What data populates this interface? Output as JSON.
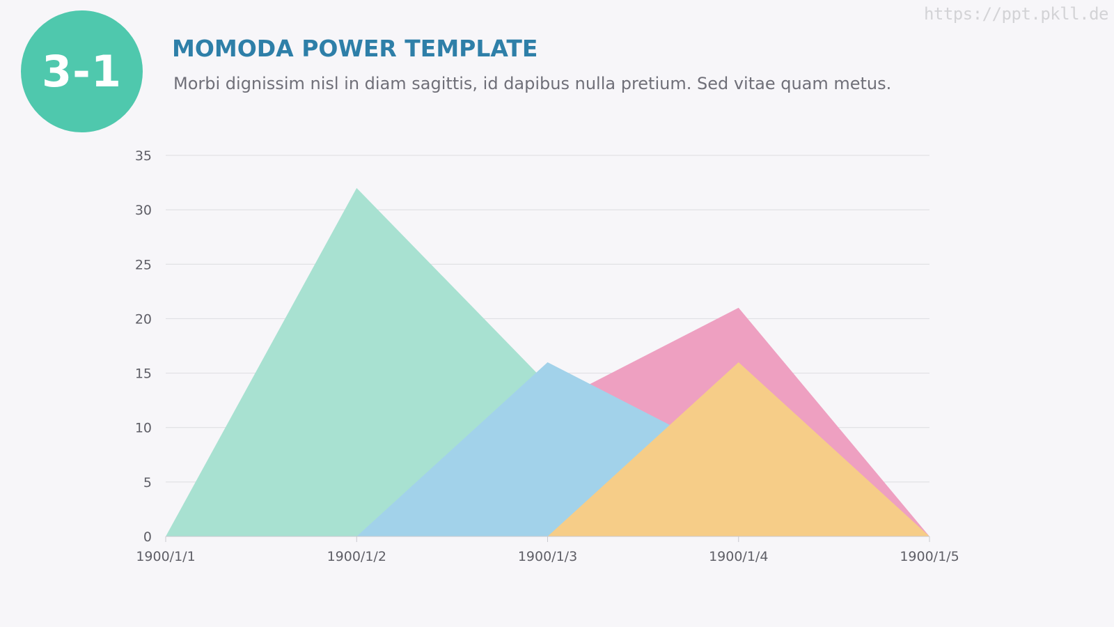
{
  "watermark": "https://ppt.pkll.de",
  "badge": {
    "label": "3-1",
    "color": "#4fc8ad"
  },
  "header": {
    "title": "MOMODA POWER TEMPLATE",
    "subtitle": "Morbi dignissim nisl in diam sagittis, id dapibus nulla pretium. Sed vitae quam metus."
  },
  "chart_data": {
    "type": "area",
    "title": "",
    "xlabel": "",
    "ylabel": "",
    "categories": [
      "1900/1/1",
      "1900/1/2",
      "1900/1/3",
      "1900/1/4",
      "1900/1/5"
    ],
    "ylim": [
      0,
      35
    ],
    "yticks": [
      0,
      5,
      10,
      15,
      20,
      25,
      30,
      35
    ],
    "grid": true,
    "legend": "none",
    "series": [
      {
        "values": [
          0,
          32,
          14,
          0,
          0
        ],
        "color": "#a8e1d1"
      },
      {
        "values": [
          0,
          0,
          12,
          21,
          0
        ],
        "color": "#eea0c1"
      },
      {
        "values": [
          0,
          0,
          16,
          7,
          0
        ],
        "color": "#a2d2ea"
      },
      {
        "values": [
          0,
          0,
          0,
          16,
          0
        ],
        "color": "#f6cd88"
      }
    ]
  }
}
